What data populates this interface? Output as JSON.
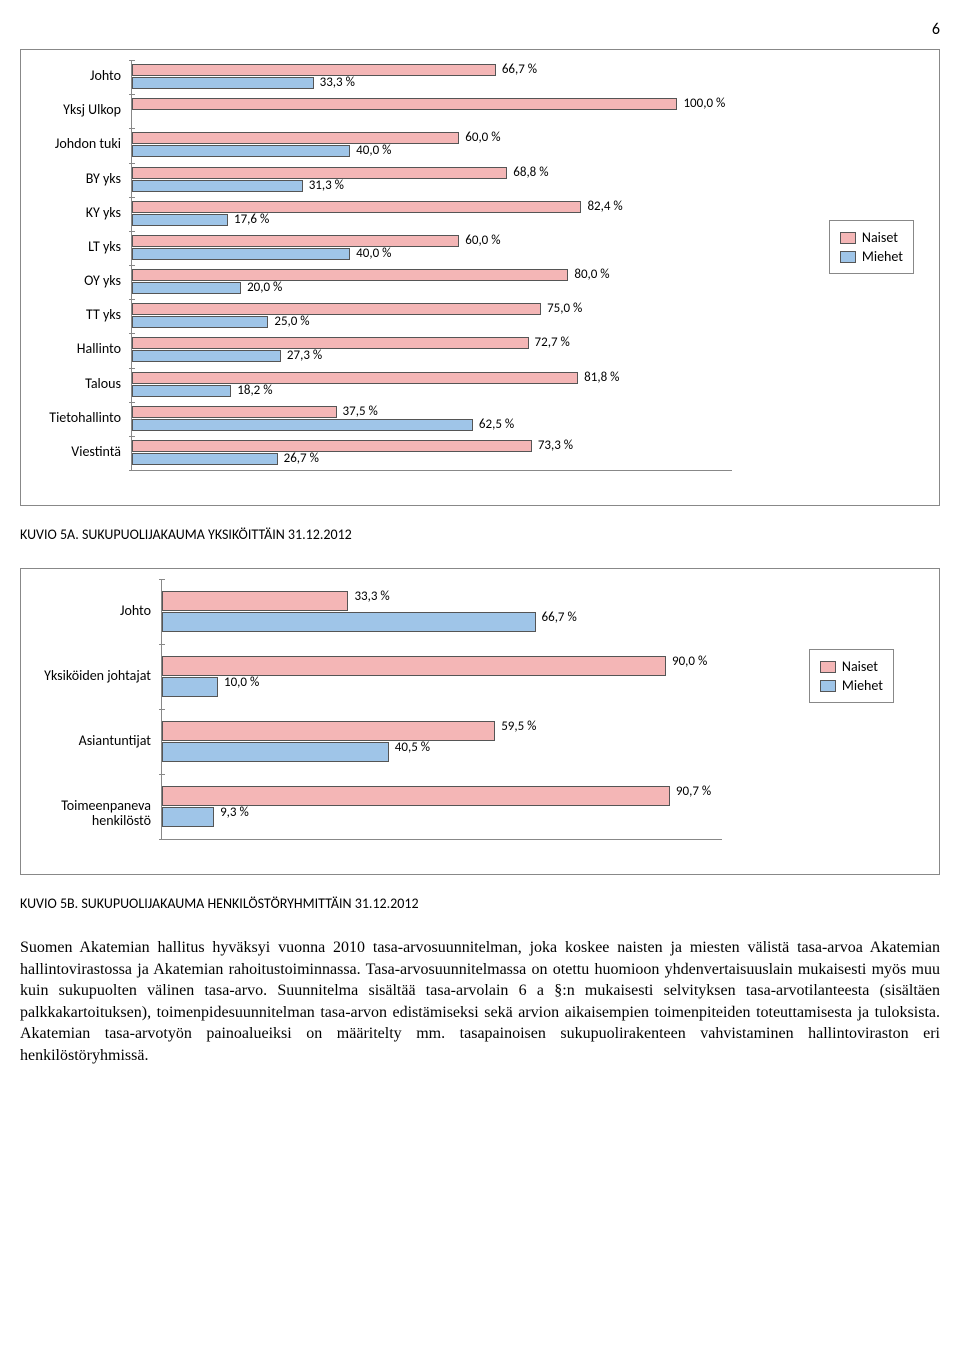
{
  "page_number": "6",
  "colors": {
    "naiset": "#f4b6b6",
    "miehet": "#9fc5e8",
    "border": "#555555"
  },
  "legend": {
    "naiset": "Naiset",
    "miehet": "Miehet"
  },
  "chart1": {
    "type": "bar",
    "xmax": 110,
    "categories": [
      {
        "label": "Johto",
        "naiset": 66.7,
        "miehet": 33.3,
        "nl": "66,7 %",
        "ml": "33,3 %"
      },
      {
        "label": "Yksj Ulkop",
        "naiset": 100.0,
        "miehet": null,
        "nl": "100,0 %",
        "ml": null
      },
      {
        "label": "Johdon tuki",
        "naiset": 60.0,
        "miehet": 40.0,
        "nl": "60,0 %",
        "ml": "40,0 %"
      },
      {
        "label": "BY yks",
        "naiset": 68.8,
        "miehet": 31.3,
        "nl": "68,8 %",
        "ml": "31,3 %"
      },
      {
        "label": "KY yks",
        "naiset": 82.4,
        "miehet": 17.6,
        "nl": "82,4 %",
        "ml": "17,6 %"
      },
      {
        "label": "LT yks",
        "naiset": 60.0,
        "miehet": 40.0,
        "nl": "60,0 %",
        "ml": "40,0 %"
      },
      {
        "label": "OY yks",
        "naiset": 80.0,
        "miehet": 20.0,
        "nl": "80,0 %",
        "ml": "20,0 %"
      },
      {
        "label": "TT yks",
        "naiset": 75.0,
        "miehet": 25.0,
        "nl": "75,0 %",
        "ml": "25,0 %"
      },
      {
        "label": "Hallinto",
        "naiset": 72.7,
        "miehet": 27.3,
        "nl": "72,7 %",
        "ml": "27,3 %"
      },
      {
        "label": "Talous",
        "naiset": 81.8,
        "miehet": 18.2,
        "nl": "81,8 %",
        "ml": "18,2 %"
      },
      {
        "label": "Tietohallinto",
        "naiset": 37.5,
        "miehet": 62.5,
        "nl": "37,5 %",
        "ml": "62,5 %"
      },
      {
        "label": "Viestintä",
        "naiset": 73.3,
        "miehet": 26.7,
        "nl": "73,3 %",
        "ml": "26,7 %"
      }
    ]
  },
  "caption1": "KUVIO 5A. SUKUPUOLIJAKAUMA YKSIKÖITTÄIN 31.12.2012",
  "chart2": {
    "type": "bar",
    "xmax": 100,
    "categories": [
      {
        "label": "Johto",
        "naiset": 33.3,
        "miehet": 66.7,
        "nl": "33,3 %",
        "ml": "66,7 %"
      },
      {
        "label": "Yksiköiden johtajat",
        "naiset": 90.0,
        "miehet": 10.0,
        "nl": "90,0 %",
        "ml": "10,0 %"
      },
      {
        "label": "Asiantuntijat",
        "naiset": 59.5,
        "miehet": 40.5,
        "nl": "59,5 %",
        "ml": "40,5 %"
      },
      {
        "label": "Toimeenpaneva henkilöstö",
        "naiset": 90.7,
        "miehet": 9.3,
        "nl": "90,7 %",
        "ml": "9,3 %"
      }
    ]
  },
  "caption2": "KUVIO 5B. SUKUPUOLIJAKAUMA HENKILÖSTÖRYHMITTÄIN 31.12.2012",
  "body_text": "Suomen Akatemian hallitus hyväksyi vuonna 2010 tasa-arvosuunnitelman, joka koskee naisten ja miesten välistä tasa-arvoa Akatemian hallintovirastossa ja Akatemian rahoitustoiminnassa. Tasa-arvosuunnitelmassa on otettu huomioon yhdenvertaisuuslain mukaisesti myös muu kuin sukupuolten välinen tasa-arvo. Suunnitelma sisältää tasa-arvolain 6 a §:n mukaisesti selvityksen tasa-arvotilanteesta (sisältäen palkkakartoituksen), toimenpidesuunnitelman tasa-arvon edistämiseksi sekä arvion aikaisempien toimenpiteiden toteuttamisesta ja tuloksista. Akatemian tasa-arvotyön painoalueiksi on määritelty mm. tasapainoisen sukupuolirakenteen vahvistaminen hallintoviraston eri henkilöstöryhmissä."
}
